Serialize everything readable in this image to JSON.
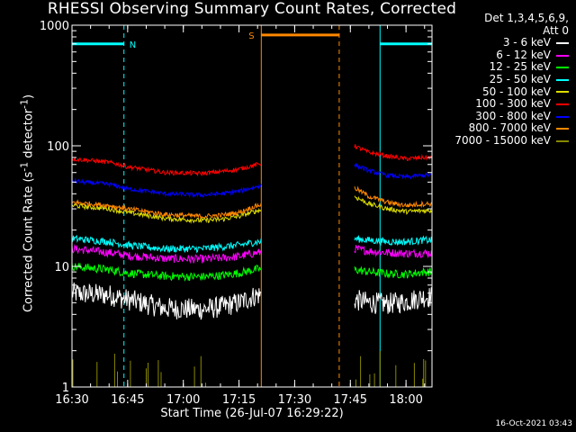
{
  "chart_data": {
    "type": "line",
    "title": "RHESSI Observing Summary Count Rates, Corrected",
    "xlabel": "Start Time (26-Jul-07 16:29:22)",
    "ylabel_main": "Corrected Count Rate (s",
    "ylabel_sup1": "-1",
    "ylabel_mid": " detector",
    "ylabel_sup2": "-1",
    "ylabel_end": ")",
    "yscale": "log",
    "xlim": [
      "16:30",
      "18:07"
    ],
    "ylim": [
      1,
      1000
    ],
    "x_ticks": [
      "16:30",
      "16:45",
      "17:00",
      "17:15",
      "17:30",
      "17:45",
      "18:00"
    ],
    "y_ticks": [
      "1",
      "10",
      "100",
      "1000"
    ],
    "legend_header": [
      "Det 1,3,4,5,6,9,",
      "Att 0"
    ],
    "legend_position": "top-right, outside plot",
    "timestamp": "16-Oct-2021 03:43",
    "flags": {
      "night_label": "N",
      "saa_label": "S",
      "night_color": "#00ffff",
      "saa_color": "#ff8800",
      "night_spans": [
        [
          "16:30",
          "16:44"
        ],
        [
          "17:53",
          "18:07"
        ]
      ],
      "saa_span": [
        "17:21",
        "17:42"
      ],
      "flag_level": 700
    },
    "data_gap": [
      "17:21",
      "17:46"
    ],
    "series": [
      {
        "name": "3 - 6 keV",
        "color": "#ffffff",
        "noise": 0.09,
        "x": [
          "16:30",
          "16:40",
          "16:45",
          "16:55",
          "17:05",
          "17:10",
          "17:15",
          "17:20",
          "17:46",
          "17:50",
          "17:55",
          "18:00",
          "18:05"
        ],
        "y": [
          6.0,
          5.8,
          5.3,
          4.5,
          4.4,
          4.6,
          5.0,
          5.8,
          5.3,
          5.0,
          4.9,
          5.1,
          5.6
        ]
      },
      {
        "name": "6 - 12 keV",
        "color": "#ff00ff",
        "noise": 0.035,
        "x": [
          "16:30",
          "16:40",
          "16:45",
          "16:55",
          "17:05",
          "17:10",
          "17:15",
          "17:20",
          "17:46",
          "17:50",
          "17:55",
          "18:00",
          "18:05"
        ],
        "y": [
          14.0,
          13.0,
          12.3,
          11.6,
          11.5,
          11.7,
          12.1,
          13.0,
          14.0,
          13.4,
          13.0,
          12.8,
          12.9
        ]
      },
      {
        "name": "12 - 25 keV",
        "color": "#00ff00",
        "noise": 0.035,
        "x": [
          "16:30",
          "16:40",
          "16:45",
          "16:55",
          "17:05",
          "17:10",
          "17:15",
          "17:20",
          "17:46",
          "17:50",
          "17:55",
          "18:00",
          "18:05"
        ],
        "y": [
          10.0,
          9.4,
          8.8,
          8.3,
          8.2,
          8.4,
          8.8,
          9.5,
          9.4,
          9.0,
          8.7,
          8.6,
          9.0
        ]
      },
      {
        "name": "25 - 50 keV",
        "color": "#00ffff",
        "noise": 0.03,
        "x": [
          "16:30",
          "16:40",
          "16:45",
          "16:55",
          "17:05",
          "17:10",
          "17:15",
          "17:20",
          "17:46",
          "17:50",
          "17:55",
          "18:00",
          "18:05"
        ],
        "y": [
          17.0,
          16.0,
          15.0,
          14.0,
          14.0,
          14.5,
          15.0,
          16.0,
          17.0,
          16.5,
          16.0,
          16.0,
          16.5
        ]
      },
      {
        "name": "50 - 100 keV",
        "color": "#dddd00",
        "noise": 0.02,
        "x": [
          "16:30",
          "16:40",
          "16:45",
          "16:55",
          "17:05",
          "17:10",
          "17:15",
          "17:20",
          "17:46",
          "17:50",
          "17:55",
          "18:00",
          "18:05"
        ],
        "y": [
          32.0,
          30.0,
          28.0,
          25.0,
          24.0,
          24.5,
          26.0,
          29.0,
          38.0,
          33.0,
          30.0,
          28.5,
          29.0
        ]
      },
      {
        "name": "100 - 300 keV",
        "color": "#ff0000",
        "noise": 0.018,
        "x": [
          "16:30",
          "16:40",
          "16:45",
          "16:55",
          "17:05",
          "17:10",
          "17:15",
          "17:20",
          "17:46",
          "17:50",
          "17:55",
          "18:00",
          "18:05"
        ],
        "y": [
          78.0,
          73.0,
          67.0,
          60.0,
          59.0,
          61.0,
          64.0,
          70.0,
          100.0,
          88.0,
          82.0,
          78.0,
          80.0
        ]
      },
      {
        "name": "300 - 800 keV",
        "color": "#0000ff",
        "noise": 0.018,
        "x": [
          "16:30",
          "16:40",
          "16:45",
          "16:55",
          "17:05",
          "17:10",
          "17:15",
          "17:20",
          "17:46",
          "17:50",
          "17:55",
          "18:00",
          "18:05"
        ],
        "y": [
          51.0,
          48.0,
          44.0,
          40.0,
          39.0,
          40.0,
          42.0,
          46.0,
          70.0,
          62.0,
          57.0,
          55.0,
          57.0
        ]
      },
      {
        "name": "800 - 7000 keV",
        "color": "#ff8800",
        "noise": 0.02,
        "x": [
          "16:30",
          "16:40",
          "16:45",
          "16:55",
          "17:05",
          "17:10",
          "17:15",
          "17:20",
          "17:46",
          "17:50",
          "17:55",
          "18:00",
          "18:05"
        ],
        "y": [
          34.0,
          32.0,
          30.0,
          27.0,
          26.0,
          26.5,
          28.0,
          32.0,
          45.0,
          38.0,
          34.0,
          32.0,
          33.0
        ]
      },
      {
        "name": "7000 - 15000 keV",
        "color": "#888800",
        "noise": 0.0,
        "x": [
          "16:30",
          "16:45",
          "17:20",
          "17:46",
          "18:05"
        ],
        "y": [
          1.3,
          1.0,
          1.0,
          1.0,
          1.0
        ]
      }
    ]
  }
}
